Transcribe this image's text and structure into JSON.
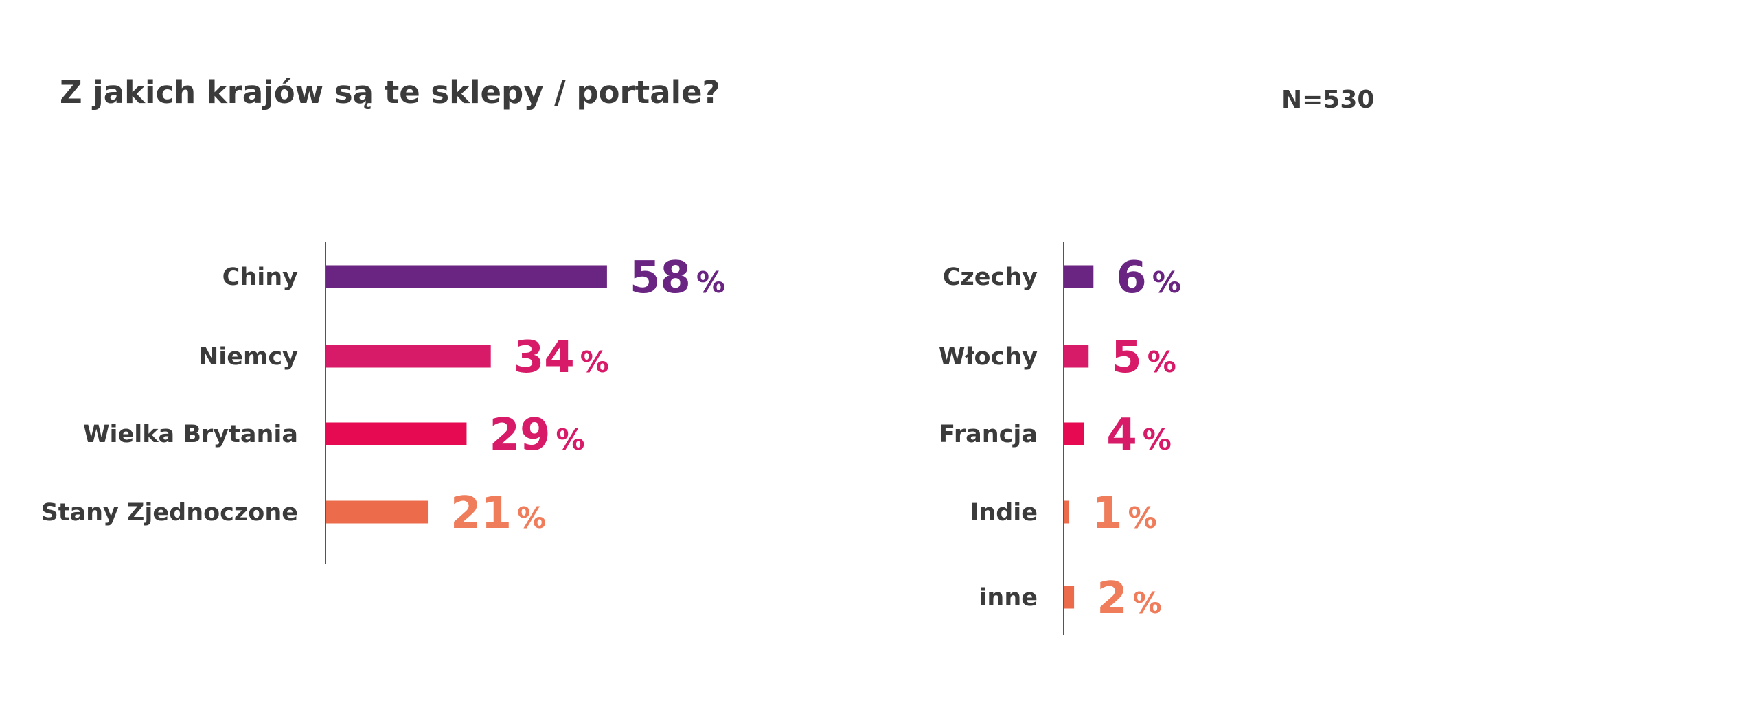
{
  "title": "Z jakich krajów są te sklepy / portale?",
  "sample_size": "N=530",
  "colors": {
    "purple": "#6a2482",
    "magenta": "#d81b68",
    "crimson": "#e50a52",
    "salmon": "#ec6b4b",
    "label_salmon": "#ef7d5c",
    "text": "#3b3b3b",
    "axis": "#555555"
  },
  "chart_data": [
    {
      "type": "bar",
      "orientation": "horizontal",
      "categories": [
        "Chiny",
        "Niemcy",
        "Wielka Brytania",
        "Stany Zjednoczone"
      ],
      "values": [
        58,
        34,
        29,
        21
      ],
      "value_labels": [
        "58",
        "34",
        "29",
        "21"
      ],
      "unit": "%",
      "bar_colors": [
        "#6a2482",
        "#d81b68",
        "#e50a52",
        "#ec6b4b"
      ],
      "label_colors": [
        "#6a2482",
        "#d81b68",
        "#d81b68",
        "#ef7d5c"
      ],
      "title": "",
      "xlabel": "",
      "ylabel": "",
      "grid": false
    },
    {
      "type": "bar",
      "orientation": "horizontal",
      "categories": [
        "Czechy",
        "Włochy",
        "Francja",
        "Indie",
        "inne"
      ],
      "values": [
        6,
        5,
        4,
        1,
        2
      ],
      "value_labels": [
        "6",
        "5",
        "4",
        "1",
        "2"
      ],
      "unit": "%",
      "bar_colors": [
        "#6a2482",
        "#d81b68",
        "#e50a52",
        "#ec6b4b",
        "#ec6b4b"
      ],
      "label_colors": [
        "#6a2482",
        "#d81b68",
        "#d81b68",
        "#ef7d5c",
        "#ef7d5c"
      ],
      "title": "",
      "xlabel": "",
      "ylabel": "",
      "grid": false
    }
  ]
}
